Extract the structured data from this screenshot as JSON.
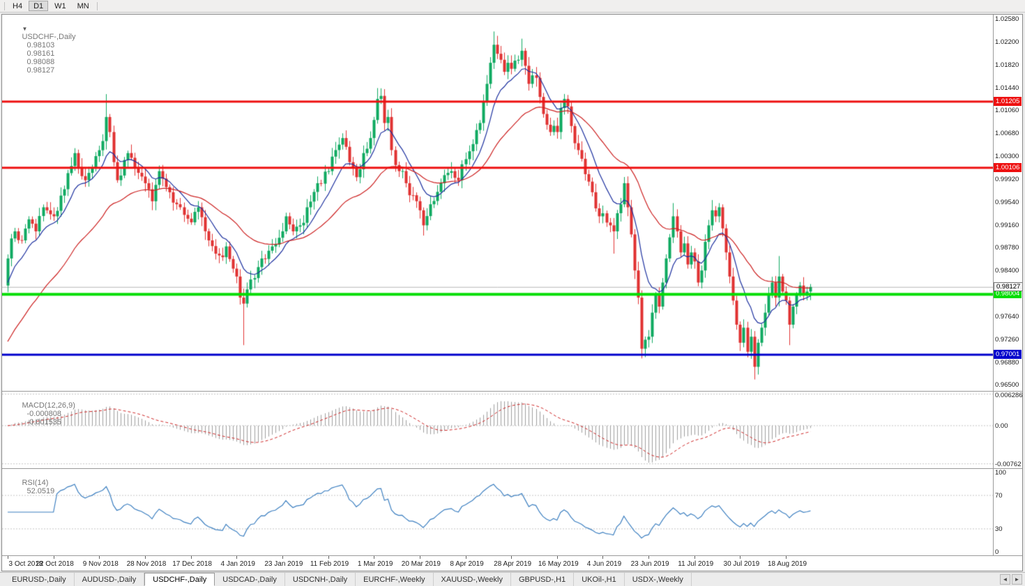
{
  "toolbar": {
    "timeframes": [
      "H4",
      "D1",
      "W1",
      "MN"
    ],
    "active": "D1"
  },
  "icons": {
    "symbol_dropdown": "▼",
    "tab_scroll_left": "◄",
    "tab_scroll_right": "►"
  },
  "colors": {
    "candle_up": "#0faa61",
    "candle_down": "#e03232",
    "ma_fast": "#1b2f9e",
    "ma_slow": "#cc2020",
    "macd_hist": "#9e9e9e",
    "macd_signal": "#cc2020",
    "rsi_line": "#3c7fc0",
    "last_price_line": "#b5b5b5",
    "hline_red": "#ee1111",
    "hline_green": "#00dd00",
    "hline_blue": "#0000cc"
  },
  "tabs": {
    "items": [
      {
        "label": "EURUSD-,Daily",
        "active": false
      },
      {
        "label": "AUDUSD-,Daily",
        "active": false
      },
      {
        "label": "USDCHF-,Daily",
        "active": true
      },
      {
        "label": "USDCAD-,Daily",
        "active": false
      },
      {
        "label": "USDCNH-,Daily",
        "active": false
      },
      {
        "label": "EURCHF-,Weekly",
        "active": false
      },
      {
        "label": "XAUUSD-,Weekly",
        "active": false
      },
      {
        "label": "GBPUSD-,H1",
        "active": false
      },
      {
        "label": "UKOil-,H1",
        "active": false
      },
      {
        "label": "USDX-,Weekly",
        "active": false
      }
    ]
  },
  "chart_data": {
    "type": "candlestick",
    "symbol": "USDCHF",
    "timeframe": "Daily",
    "header": {
      "symbol": "USDCHF-,Daily",
      "open": "0.98103",
      "high": "0.98161",
      "low": "0.98088",
      "close": "0.98127"
    },
    "num_bars": 229,
    "bars_per_label": 13,
    "x_labels": [
      "3 Oct 2018",
      "22 Oct 2018",
      "9 Nov 2018",
      "28 Nov 2018",
      "17 Dec 2018",
      "4 Jan 2019",
      "23 Jan 2019",
      "11 Feb 2019",
      "1 Mar 2019",
      "20 Mar 2019",
      "8 Apr 2019",
      "28 Apr 2019",
      "16 May 2019",
      "4 Jun 2019",
      "23 Jun 2019",
      "11 Jul 2019",
      "30 Jul 2019",
      "18 Aug 2019"
    ],
    "price_axis": {
      "ticks": [
        "1.02580",
        "1.02200",
        "1.01820",
        "1.01440",
        "1.01060",
        "1.00680",
        "1.00300",
        "0.99920",
        "0.99540",
        "0.99160",
        "0.98780",
        "0.98400",
        "0.98020",
        "0.97640",
        "0.97260",
        "0.96880",
        "0.96500"
      ]
    },
    "hlines": [
      {
        "price": 1.01205,
        "label": "1.01205",
        "color": "#ee1111",
        "width": 3
      },
      {
        "price": 1.00106,
        "label": "1.00106",
        "color": "#ee1111",
        "width": 3
      },
      {
        "price": 0.98004,
        "label": "0.98004",
        "color": "#00dd00",
        "width": 4
      },
      {
        "price": 0.97001,
        "label": "0.97001",
        "color": "#0000cc",
        "width": 3
      }
    ],
    "last_price": 0.98127,
    "last_price_label": "0.98127",
    "ma": [
      {
        "period": 10,
        "color": "#1b2f9e"
      },
      {
        "period": 34,
        "color": "#cc2020"
      }
    ],
    "macd": {
      "label": "MACD(12,26,9)",
      "values": [
        "-0.000808",
        "-0.001535"
      ],
      "fast": 12,
      "slow": 26,
      "signal": 9,
      "axis": [
        "0.006286",
        "0.00",
        "-0.00762"
      ],
      "axis_values": [
        0.006286,
        0,
        -0.00762
      ]
    },
    "rsi": {
      "label": "RSI(14)",
      "value": "52.0519",
      "period": 14,
      "levels": [
        70,
        30
      ],
      "axis": [
        "100",
        "70",
        "30",
        "0"
      ],
      "axis_values": [
        100,
        70,
        30,
        0
      ]
    },
    "close_waypoints": [
      [
        0,
        0.986
      ],
      [
        2,
        0.9905
      ],
      [
        4,
        0.989
      ],
      [
        6,
        0.9925
      ],
      [
        8,
        0.9905
      ],
      [
        10,
        0.9945
      ],
      [
        13,
        0.993
      ],
      [
        16,
        0.9975
      ],
      [
        19,
        1.0035
      ],
      [
        22,
        0.999
      ],
      [
        25,
        1.003
      ],
      [
        27,
        1.0055
      ],
      [
        28,
        1.0095
      ],
      [
        29,
        1.007
      ],
      [
        30,
        1.002
      ],
      [
        31,
        0.999
      ],
      [
        34,
        1.0035
      ],
      [
        36,
        1.001
      ],
      [
        39,
        0.9985
      ],
      [
        41,
        0.9955
      ],
      [
        43,
        1.0005
      ],
      [
        46,
        0.997
      ],
      [
        49,
        0.9945
      ],
      [
        52,
        0.992
      ],
      [
        54,
        0.9945
      ],
      [
        57,
        0.989
      ],
      [
        60,
        0.9865
      ],
      [
        62,
        0.988
      ],
      [
        65,
        0.983
      ],
      [
        66,
        0.9795
      ],
      [
        67,
        0.9785
      ],
      [
        69,
        0.9825
      ],
      [
        72,
        0.986
      ],
      [
        75,
        0.988
      ],
      [
        78,
        0.9905
      ],
      [
        79,
        0.993
      ],
      [
        81,
        0.9905
      ],
      [
        83,
        0.9915
      ],
      [
        85,
        0.9945
      ],
      [
        88,
        0.9985
      ],
      [
        91,
        1.0005
      ],
      [
        93,
        1.004
      ],
      [
        95,
        1.006
      ],
      [
        97,
        1.002
      ],
      [
        99,
        0.9995
      ],
      [
        101,
        1.0035
      ],
      [
        103,
        1.006
      ],
      [
        104,
        1.009
      ],
      [
        105,
        1.0125
      ],
      [
        106,
        1.013
      ],
      [
        107,
        1.0085
      ],
      [
        108,
        1.0095
      ],
      [
        109,
        1.004
      ],
      [
        111,
        1.0005
      ],
      [
        113,
        0.9985
      ],
      [
        115,
        0.9965
      ],
      [
        117,
        0.994
      ],
      [
        118,
        0.9915
      ],
      [
        120,
        0.995
      ],
      [
        123,
        0.9985
      ],
      [
        126,
        1.0005
      ],
      [
        128,
        0.999
      ],
      [
        130,
        1.0025
      ],
      [
        132,
        1.005
      ],
      [
        134,
        1.0085
      ],
      [
        135,
        1.012
      ],
      [
        136,
        1.015
      ],
      [
        137,
        1.0185
      ],
      [
        138,
        1.0215
      ],
      [
        139,
        1.02
      ],
      [
        140,
        1.019
      ],
      [
        141,
        1.017
      ],
      [
        142,
        1.0185
      ],
      [
        143,
        1.0175
      ],
      [
        145,
        1.019
      ],
      [
        146,
        1.0205
      ],
      [
        147,
        1.018
      ],
      [
        148,
        1.015
      ],
      [
        150,
        1.016
      ],
      [
        152,
        1.01
      ],
      [
        154,
        1.007
      ],
      [
        156,
        1.007
      ],
      [
        157,
        1.011
      ],
      [
        158,
        1.0125
      ],
      [
        160,
        1.008
      ],
      [
        162,
        1.004
      ],
      [
        164,
        1.0
      ],
      [
        166,
        0.997
      ],
      [
        168,
        0.993
      ],
      [
        169,
        0.9935
      ],
      [
        171,
        0.9915
      ],
      [
        172,
        0.9905
      ],
      [
        174,
        0.995
      ],
      [
        175,
        0.9985
      ],
      [
        176,
        0.9945
      ],
      [
        177,
        0.99
      ],
      [
        178,
        0.984
      ],
      [
        179,
        0.9795
      ],
      [
        180,
        0.971
      ],
      [
        181,
        0.9725
      ],
      [
        182,
        0.973
      ],
      [
        183,
        0.977
      ],
      [
        184,
        0.98
      ],
      [
        185,
        0.978
      ],
      [
        186,
        0.982
      ],
      [
        187,
        0.986
      ],
      [
        188,
        0.9895
      ],
      [
        189,
        0.993
      ],
      [
        190,
        0.9905
      ],
      [
        191,
        0.987
      ],
      [
        192,
        0.9885
      ],
      [
        193,
        0.985
      ],
      [
        194,
        0.987
      ],
      [
        195,
        0.9855
      ],
      [
        196,
        0.982
      ],
      [
        197,
        0.984
      ],
      [
        199,
        0.9915
      ],
      [
        200,
        0.994
      ],
      [
        201,
        0.993
      ],
      [
        202,
        0.9945
      ],
      [
        203,
        0.991
      ],
      [
        204,
        0.987
      ],
      [
        205,
        0.983
      ],
      [
        206,
        0.979
      ],
      [
        207,
        0.975
      ],
      [
        208,
        0.972
      ],
      [
        209,
        0.9745
      ],
      [
        210,
        0.9705
      ],
      [
        211,
        0.973
      ],
      [
        212,
        0.968
      ],
      [
        213,
        0.972
      ],
      [
        214,
        0.9745
      ],
      [
        215,
        0.977
      ],
      [
        216,
        0.98
      ],
      [
        217,
        0.982
      ],
      [
        218,
        0.9795
      ],
      [
        219,
        0.983
      ],
      [
        220,
        0.9805
      ],
      [
        221,
        0.979
      ],
      [
        222,
        0.975
      ],
      [
        223,
        0.978
      ],
      [
        224,
        0.98
      ],
      [
        225,
        0.9815
      ],
      [
        226,
        0.98
      ],
      [
        227,
        0.9805
      ],
      [
        228,
        0.98127
      ]
    ],
    "wick_extremes": [
      {
        "bar": 0,
        "low": 0.9832
      },
      {
        "bar": 28,
        "high": 1.0133
      },
      {
        "bar": 67,
        "low": 0.9716
      },
      {
        "bar": 105,
        "high": 1.0143
      },
      {
        "bar": 118,
        "low": 0.9898
      },
      {
        "bar": 138,
        "high": 1.0237
      },
      {
        "bar": 146,
        "high": 1.0225
      },
      {
        "bar": 172,
        "low": 0.9868
      },
      {
        "bar": 180,
        "low": 0.9694
      },
      {
        "bar": 189,
        "high": 0.9952
      },
      {
        "bar": 200,
        "high": 0.9957
      },
      {
        "bar": 212,
        "low": 0.9659
      },
      {
        "bar": 219,
        "high": 0.9864
      },
      {
        "bar": 222,
        "low": 0.9716
      }
    ]
  }
}
